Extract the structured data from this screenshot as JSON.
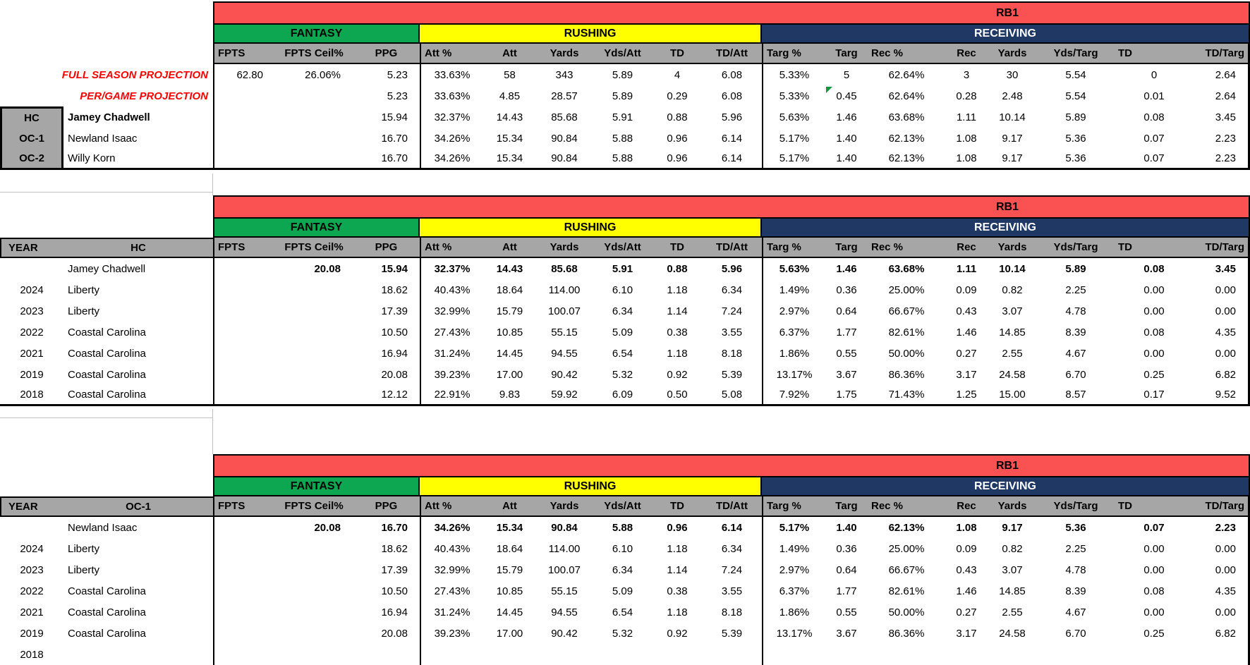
{
  "position": "RB1",
  "colors": {
    "banner": "#FA5152",
    "fantasy": "#0CA750",
    "rushing": "#FFFF00",
    "receiving": "#1F3864",
    "header_gray": "#A6A6A6",
    "accent_text": "#FF0000"
  },
  "section_labels": {
    "fantasy": "FANTASY",
    "rushing": "RUSHING",
    "receiving": "RECEIVING"
  },
  "column_headers": [
    "FPTS",
    "FPTS Ceil%",
    "PPG",
    "Att %",
    "Att",
    "Yards",
    "Yds/Att",
    "TD",
    "TD/Att",
    "Targ %",
    "Targ",
    "Rec %",
    "Rec",
    "Yards",
    "Yds/Targ",
    "TD",
    "TD/Targ"
  ],
  "tables": [
    {
      "name": "projection",
      "banner": "RB1",
      "left_style": "projection",
      "rows": [
        {
          "row_label": "FULL SEASON PROJECTION",
          "cells": [
            "62.80",
            "26.06%",
            "5.23",
            "33.63%",
            "58",
            "343",
            "5.89",
            "4",
            "6.08",
            "5.33%",
            "5",
            "62.64%",
            "3",
            "30",
            "5.54",
            "0",
            "2.64"
          ]
        },
        {
          "row_label": "PER/GAME PROJECTION",
          "flag_col": 10,
          "cells": [
            "",
            "",
            "5.23",
            "33.63%",
            "4.85",
            "28.57",
            "5.89",
            "0.29",
            "6.08",
            "5.33%",
            "0.45",
            "62.64%",
            "0.28",
            "2.48",
            "5.54",
            "0.01",
            "2.64"
          ]
        },
        {
          "role_label": "HC",
          "coach": "Jamey Chadwell",
          "coach_bold": true,
          "cells": [
            "",
            "",
            "15.94",
            "32.37%",
            "14.43",
            "85.68",
            "5.91",
            "0.88",
            "5.96",
            "5.63%",
            "1.46",
            "63.68%",
            "1.11",
            "10.14",
            "5.89",
            "0.08",
            "3.45"
          ]
        },
        {
          "role_label": "OC-1",
          "coach": "Newland Isaac",
          "cells": [
            "",
            "",
            "16.70",
            "34.26%",
            "15.34",
            "90.84",
            "5.88",
            "0.96",
            "6.14",
            "5.17%",
            "1.40",
            "62.13%",
            "1.08",
            "9.17",
            "5.36",
            "0.07",
            "2.23"
          ]
        },
        {
          "role_label": "OC-2",
          "coach": "Willy Korn",
          "cells": [
            "",
            "",
            "16.70",
            "34.26%",
            "15.34",
            "90.84",
            "5.88",
            "0.96",
            "6.14",
            "5.17%",
            "1.40",
            "62.13%",
            "1.08",
            "9.17",
            "5.36",
            "0.07",
            "2.23"
          ]
        }
      ]
    },
    {
      "name": "hc-history",
      "banner": "RB1",
      "left_style": "history",
      "year_header": "YEAR",
      "coach_header": "HC",
      "rows": [
        {
          "year": "",
          "team": "Jamey Chadwell",
          "bold_values": true,
          "cells": [
            "",
            "20.08",
            "15.94",
            "32.37%",
            "14.43",
            "85.68",
            "5.91",
            "0.88",
            "5.96",
            "5.63%",
            "1.46",
            "63.68%",
            "1.11",
            "10.14",
            "5.89",
            "0.08",
            "3.45"
          ]
        },
        {
          "year": "2024",
          "team": "Liberty",
          "cells": [
            "",
            "",
            "18.62",
            "40.43%",
            "18.64",
            "114.00",
            "6.10",
            "1.18",
            "6.34",
            "1.49%",
            "0.36",
            "25.00%",
            "0.09",
            "0.82",
            "2.25",
            "0.00",
            "0.00"
          ]
        },
        {
          "year": "2023",
          "team": "Liberty",
          "cells": [
            "",
            "",
            "17.39",
            "32.99%",
            "15.79",
            "100.07",
            "6.34",
            "1.14",
            "7.24",
            "2.97%",
            "0.64",
            "66.67%",
            "0.43",
            "3.07",
            "4.78",
            "0.00",
            "0.00"
          ]
        },
        {
          "year": "2022",
          "team": "Coastal Carolina",
          "cells": [
            "",
            "",
            "10.50",
            "27.43%",
            "10.85",
            "55.15",
            "5.09",
            "0.38",
            "3.55",
            "6.37%",
            "1.77",
            "82.61%",
            "1.46",
            "14.85",
            "8.39",
            "0.08",
            "4.35"
          ]
        },
        {
          "year": "2021",
          "team": "Coastal Carolina",
          "cells": [
            "",
            "",
            "16.94",
            "31.24%",
            "14.45",
            "94.55",
            "6.54",
            "1.18",
            "8.18",
            "1.86%",
            "0.55",
            "50.00%",
            "0.27",
            "2.55",
            "4.67",
            "0.00",
            "0.00"
          ]
        },
        {
          "year": "2019",
          "team": "Coastal Carolina",
          "cells": [
            "",
            "",
            "20.08",
            "39.23%",
            "17.00",
            "90.42",
            "5.32",
            "0.92",
            "5.39",
            "13.17%",
            "3.67",
            "86.36%",
            "3.17",
            "24.58",
            "6.70",
            "0.25",
            "6.82"
          ]
        },
        {
          "year": "2018",
          "team": "Coastal Carolina",
          "cells": [
            "",
            "",
            "12.12",
            "22.91%",
            "9.83",
            "59.92",
            "6.09",
            "0.50",
            "5.08",
            "7.92%",
            "1.75",
            "71.43%",
            "1.25",
            "15.00",
            "8.57",
            "0.17",
            "9.52"
          ]
        }
      ]
    },
    {
      "name": "oc1-history",
      "banner": "RB1",
      "left_style": "history",
      "year_header": "YEAR",
      "coach_header": "OC-1",
      "rows": [
        {
          "year": "",
          "team": "Newland Isaac",
          "bold_values": true,
          "cells": [
            "",
            "20.08",
            "16.70",
            "34.26%",
            "15.34",
            "90.84",
            "5.88",
            "0.96",
            "6.14",
            "5.17%",
            "1.40",
            "62.13%",
            "1.08",
            "9.17",
            "5.36",
            "0.07",
            "2.23"
          ]
        },
        {
          "year": "2024",
          "team": "Liberty",
          "cells": [
            "",
            "",
            "18.62",
            "40.43%",
            "18.64",
            "114.00",
            "6.10",
            "1.18",
            "6.34",
            "1.49%",
            "0.36",
            "25.00%",
            "0.09",
            "0.82",
            "2.25",
            "0.00",
            "0.00"
          ]
        },
        {
          "year": "2023",
          "team": "Liberty",
          "cells": [
            "",
            "",
            "17.39",
            "32.99%",
            "15.79",
            "100.07",
            "6.34",
            "1.14",
            "7.24",
            "2.97%",
            "0.64",
            "66.67%",
            "0.43",
            "3.07",
            "4.78",
            "0.00",
            "0.00"
          ]
        },
        {
          "year": "2022",
          "team": "Coastal Carolina",
          "cells": [
            "",
            "",
            "10.50",
            "27.43%",
            "10.85",
            "55.15",
            "5.09",
            "0.38",
            "3.55",
            "6.37%",
            "1.77",
            "82.61%",
            "1.46",
            "14.85",
            "8.39",
            "0.08",
            "4.35"
          ]
        },
        {
          "year": "2021",
          "team": "Coastal Carolina",
          "cells": [
            "",
            "",
            "16.94",
            "31.24%",
            "14.45",
            "94.55",
            "6.54",
            "1.18",
            "8.18",
            "1.86%",
            "0.55",
            "50.00%",
            "0.27",
            "2.55",
            "4.67",
            "0.00",
            "0.00"
          ]
        },
        {
          "year": "2019",
          "team": "Coastal Carolina",
          "cells": [
            "",
            "",
            "20.08",
            "39.23%",
            "17.00",
            "90.42",
            "5.32",
            "0.92",
            "5.39",
            "13.17%",
            "3.67",
            "86.36%",
            "3.17",
            "24.58",
            "6.70",
            "0.25",
            "6.82"
          ]
        },
        {
          "year": "2018",
          "team": "",
          "cells": [
            "",
            "",
            "",
            "",
            "",
            "",
            "",
            "",
            "",
            "",
            "",
            "",
            "",
            "",
            "",
            "",
            ""
          ]
        }
      ]
    }
  ]
}
